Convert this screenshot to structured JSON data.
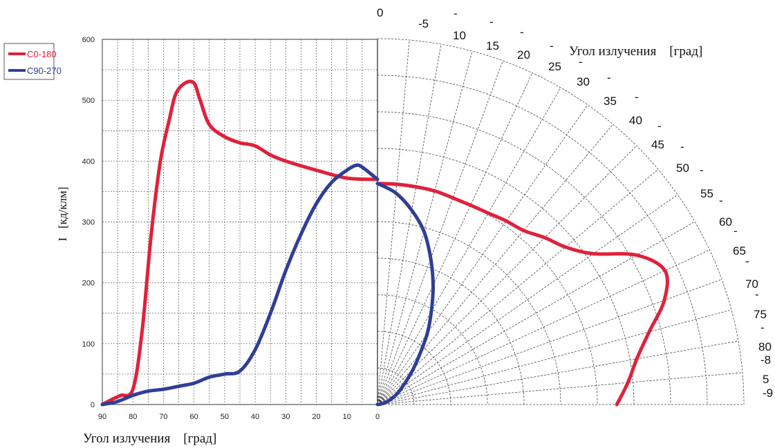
{
  "chart_data": {
    "type": "line",
    "xlabel": "Угол излучения    [град]",
    "ylabel": "I   [кд/клм]",
    "polar_label": "Угол излучения    [град]",
    "x_ticks": [
      "90",
      "80",
      "70",
      "60",
      "50",
      "40",
      "30",
      "20",
      "10",
      "0"
    ],
    "y_ticks": [
      "0",
      "100",
      "200",
      "300",
      "400",
      "500",
      "600"
    ],
    "xlim": [
      90,
      0
    ],
    "ylim": [
      0,
      600
    ],
    "polar_angle_labels": [
      "0",
      "-5",
      "10",
      "15",
      "20",
      "25",
      "30",
      "35",
      "40",
      "45",
      "50",
      "55",
      "60",
      "65",
      "70",
      "75",
      "80",
      "-8",
      "5",
      "-9"
    ],
    "legend_position": "top-left",
    "series": [
      {
        "name": "C0-180",
        "color": "#e0213b",
        "x": [
          90,
          87,
          84,
          80,
          77,
          74,
          71,
          68,
          66,
          63,
          60,
          58,
          55,
          50,
          45,
          40,
          35,
          30,
          20,
          10,
          0
        ],
        "y": [
          0,
          8,
          15,
          25,
          120,
          280,
          400,
          470,
          510,
          528,
          528,
          500,
          460,
          440,
          430,
          425,
          410,
          400,
          385,
          372,
          370
        ]
      },
      {
        "name": "C90-270",
        "color": "#2f3f96",
        "x": [
          90,
          85,
          80,
          75,
          70,
          65,
          60,
          55,
          50,
          45,
          40,
          35,
          30,
          25,
          20,
          15,
          10,
          7,
          5,
          0
        ],
        "y": [
          0,
          5,
          15,
          22,
          25,
          30,
          35,
          45,
          50,
          55,
          90,
          150,
          220,
          280,
          330,
          365,
          385,
          393,
          390,
          370
        ]
      }
    ],
    "polar_series": [
      {
        "name": "C0-180",
        "color": "#e0213b",
        "angle_deg": [
          0,
          5,
          10,
          15,
          20,
          25,
          30,
          35,
          40,
          45,
          50,
          55,
          60,
          65,
          70,
          75,
          80,
          85,
          90
        ],
        "value": [
          370,
          370,
          370,
          370,
          368,
          368,
          370,
          375,
          380,
          395,
          410,
          440,
          500,
          530,
          510,
          470,
          440,
          420,
          400
        ]
      },
      {
        "name": "C90-270",
        "color": "#2f3f96",
        "angle_deg": [
          0,
          5,
          10,
          15,
          20,
          25,
          30,
          35,
          40,
          45,
          50,
          55,
          60,
          65,
          70,
          75,
          80,
          85,
          90
        ],
        "value": [
          370,
          355,
          330,
          300,
          260,
          220,
          180,
          145,
          110,
          85,
          65,
          50,
          40,
          30,
          22,
          15,
          8,
          3,
          0
        ]
      }
    ]
  }
}
